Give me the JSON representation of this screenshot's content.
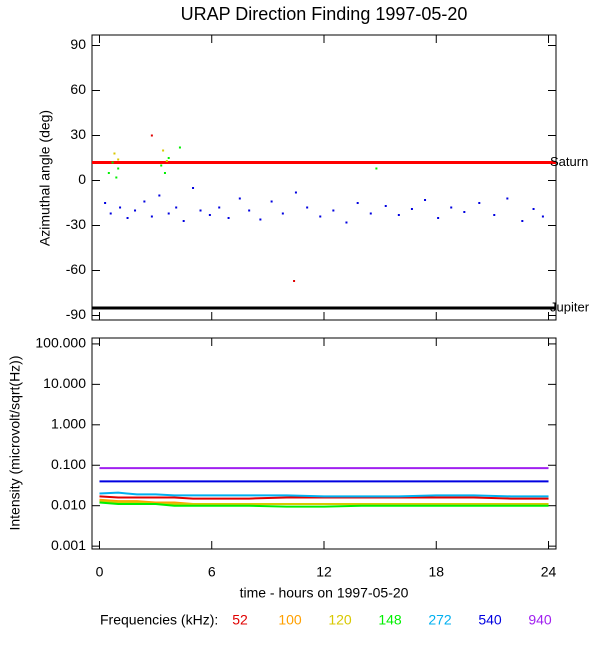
{
  "chart_data": [
    {
      "type": "scatter",
      "title": "URAP Direction Finding  1997-05-20",
      "y_label": "Azimuthal angle (deg)",
      "xlim": [
        -0.4,
        24.4
      ],
      "ylim": [
        -93,
        97
      ],
      "yticks": [
        90,
        60,
        30,
        0,
        -30,
        -60,
        -90
      ],
      "lines": [
        {
          "name": "Saturn",
          "color": "#ff0000",
          "value": 12
        },
        {
          "name": "Jupiter",
          "color": "#000000",
          "value": -85
        }
      ],
      "series": [
        {
          "color": "#0000e0",
          "x": [
            0.3,
            0.6,
            1.1,
            1.5,
            1.9,
            2.4,
            2.8,
            3.2,
            3.7,
            4.1,
            4.5,
            5.0,
            5.4,
            5.9,
            6.4,
            6.9,
            7.5,
            8.0,
            8.6,
            9.2,
            9.8,
            10.5,
            11.1,
            11.8,
            12.5,
            13.2,
            13.8,
            14.5,
            15.3,
            16.0,
            16.7,
            17.4,
            18.1,
            18.8,
            19.5,
            20.3,
            21.1,
            21.8,
            22.6,
            23.2,
            23.7
          ],
          "values": [
            -15,
            -22,
            -18,
            -25,
            -20,
            -14,
            -24,
            -10,
            -22,
            -18,
            -27,
            -5,
            -20,
            -23,
            -18,
            -25,
            -12,
            -20,
            -26,
            -14,
            -22,
            -8,
            -18,
            -24,
            -20,
            -28,
            -15,
            -22,
            -17,
            -23,
            -19,
            -13,
            -25,
            -18,
            -21,
            -15,
            -23,
            -12,
            -27,
            -19,
            -24
          ]
        },
        {
          "color": "#00f000",
          "x": [
            0.5,
            0.7,
            0.9,
            1.0,
            3.3,
            3.5,
            3.7,
            4.3,
            14.8
          ],
          "values": [
            5,
            12,
            2,
            8,
            10,
            5,
            15,
            22,
            8
          ]
        },
        {
          "color": "#d8c800",
          "x": [
            0.8,
            1.0,
            3.4,
            3.6
          ],
          "values": [
            18,
            14,
            20,
            13
          ]
        },
        {
          "color": "#e00000",
          "x": [
            2.8,
            10.4
          ],
          "values": [
            30,
            -67
          ]
        }
      ]
    },
    {
      "type": "line",
      "y_label": "Intensity (microvolt/sqrt(Hz))",
      "x_label": "time - hours on 1997-05-20",
      "log_scale": true,
      "xlim": [
        -0.4,
        24.4
      ],
      "xticks": [
        0,
        6,
        12,
        18,
        24
      ],
      "ylim": [
        0.00085,
        140
      ],
      "yticks": [
        {
          "value": 100,
          "label": "100.000"
        },
        {
          "value": 10,
          "label": "10.000"
        },
        {
          "value": 1,
          "label": "1.000"
        },
        {
          "value": 0.1,
          "label": "0.100"
        },
        {
          "value": 0.01,
          "label": "0.010"
        },
        {
          "value": 0.001,
          "label": "0.001"
        }
      ],
      "legend_title": "Frequencies (kHz):",
      "x": [
        0,
        1,
        2,
        3,
        4,
        5,
        6,
        8,
        10,
        12,
        14,
        16,
        18,
        20,
        22,
        24
      ],
      "series": [
        {
          "name": "52",
          "color": "#e00000",
          "values": [
            0.017,
            0.016,
            0.016,
            0.016,
            0.016,
            0.015,
            0.015,
            0.015,
            0.016,
            0.016,
            0.016,
            0.016,
            0.016,
            0.016,
            0.015,
            0.015
          ]
        },
        {
          "name": "100",
          "color": "#ffa000",
          "values": [
            0.014,
            0.013,
            0.013,
            0.012,
            0.012,
            0.011,
            0.011,
            0.011,
            0.011,
            0.011,
            0.011,
            0.011,
            0.011,
            0.011,
            0.011,
            0.011
          ]
        },
        {
          "name": "120",
          "color": "#d8c800",
          "values": [
            0.013,
            0.012,
            0.012,
            0.011,
            0.011,
            0.011,
            0.011,
            0.011,
            0.011,
            0.011,
            0.011,
            0.011,
            0.011,
            0.011,
            0.011,
            0.011
          ]
        },
        {
          "name": "148",
          "color": "#00f000",
          "values": [
            0.012,
            0.011,
            0.011,
            0.011,
            0.01,
            0.01,
            0.01,
            0.01,
            0.0095,
            0.0095,
            0.01,
            0.01,
            0.01,
            0.01,
            0.01,
            0.01
          ]
        },
        {
          "name": "272",
          "color": "#00b0f0",
          "values": [
            0.02,
            0.021,
            0.019,
            0.019,
            0.018,
            0.018,
            0.018,
            0.018,
            0.018,
            0.017,
            0.017,
            0.017,
            0.018,
            0.018,
            0.017,
            0.017
          ]
        },
        {
          "name": "540",
          "color": "#0000e0",
          "values": [
            0.04,
            0.04,
            0.04,
            0.04,
            0.04,
            0.04,
            0.04,
            0.04,
            0.04,
            0.04,
            0.04,
            0.04,
            0.04,
            0.04,
            0.04,
            0.04
          ]
        },
        {
          "name": "940",
          "color": "#a020f0",
          "values": [
            0.085,
            0.085,
            0.085,
            0.085,
            0.085,
            0.085,
            0.085,
            0.085,
            0.085,
            0.085,
            0.085,
            0.085,
            0.085,
            0.085,
            0.085,
            0.085
          ]
        }
      ]
    }
  ]
}
